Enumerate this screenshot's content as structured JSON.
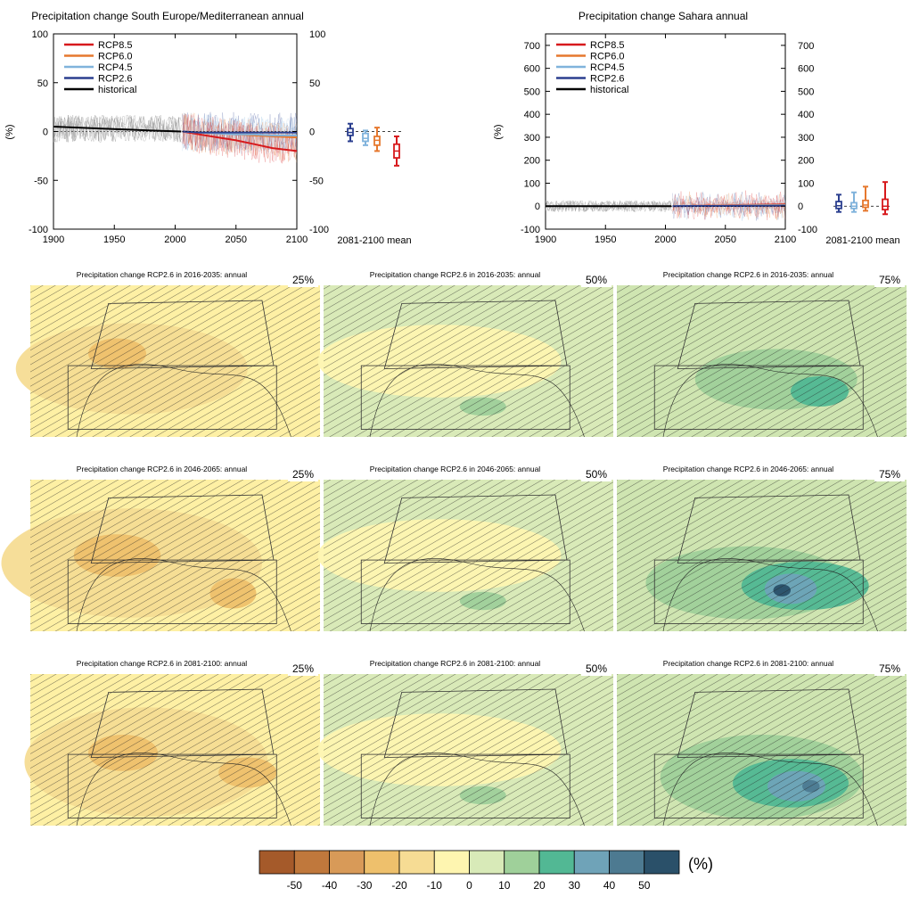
{
  "chart_data": [
    {
      "type": "line",
      "title": "Precipitation change South Europe/Mediterranean annual",
      "ylabel": "(%)",
      "x_ticks": [
        1900,
        1950,
        2000,
        2050,
        2100
      ],
      "xlim": [
        1900,
        2100
      ],
      "ylim": [
        -100,
        100
      ],
      "y_ticks": [
        -100,
        -50,
        0,
        50,
        100
      ],
      "legend_position": "top-left",
      "series": [
        {
          "name": "RCP8.5",
          "color": "#d7191c",
          "x": [
            2006,
            2020,
            2035,
            2050,
            2065,
            2080,
            2100
          ],
          "values": [
            0,
            -3,
            -6,
            -9,
            -13,
            -17,
            -20
          ]
        },
        {
          "name": "RCP6.0",
          "color": "#e6782e",
          "x": [
            2006,
            2020,
            2035,
            2050,
            2065,
            2080,
            2100
          ],
          "values": [
            0,
            -1,
            -2,
            -3,
            -4,
            -5,
            -6
          ]
        },
        {
          "name": "RCP4.5",
          "color": "#80b3dc",
          "x": [
            2006,
            2020,
            2035,
            2050,
            2065,
            2080,
            2100
          ],
          "values": [
            0,
            -1,
            -2,
            -3,
            -3,
            -4,
            -4
          ]
        },
        {
          "name": "RCP2.6",
          "color": "#2b3f8f",
          "x": [
            2006,
            2020,
            2035,
            2050,
            2065,
            2080,
            2100
          ],
          "values": [
            0,
            -1,
            -1,
            -1,
            -1,
            -1,
            -1
          ]
        },
        {
          "name": "historical",
          "color": "#000000",
          "x": [
            1900,
            1920,
            1940,
            1960,
            1980,
            2005
          ],
          "values": [
            5,
            4,
            3,
            2,
            1,
            0
          ]
        }
      ],
      "mean_label": "2081-2100 mean",
      "boxplots": [
        {
          "scenario": "RCP2.6",
          "color": "#2b3f8f",
          "min": -10,
          "q1": -4,
          "median": -1,
          "q3": 3,
          "max": 8
        },
        {
          "scenario": "RCP4.5",
          "color": "#80b3dc",
          "min": -14,
          "q1": -10,
          "median": -7,
          "q3": -2,
          "max": 1
        },
        {
          "scenario": "RCP6.0",
          "color": "#e6782e",
          "min": -20,
          "q1": -14,
          "median": -9,
          "q3": -5,
          "max": 4
        },
        {
          "scenario": "RCP8.5",
          "color": "#d7191c",
          "min": -35,
          "q1": -27,
          "median": -20,
          "q3": -13,
          "max": -5
        }
      ]
    },
    {
      "type": "line",
      "title": "Precipitation change Sahara annual",
      "ylabel": "(%)",
      "x_ticks": [
        1900,
        1950,
        2000,
        2050,
        2100
      ],
      "xlim": [
        1900,
        2100
      ],
      "ylim": [
        -100,
        750
      ],
      "y_ticks": [
        -100,
        0,
        100,
        200,
        300,
        400,
        500,
        600,
        700
      ],
      "legend_position": "top-left",
      "series": [
        {
          "name": "RCP8.5",
          "color": "#d7191c",
          "x": [
            2006,
            2035,
            2065,
            2100
          ],
          "values": [
            0,
            2,
            5,
            8
          ]
        },
        {
          "name": "RCP6.0",
          "color": "#e6782e",
          "x": [
            2006,
            2035,
            2065,
            2100
          ],
          "values": [
            0,
            2,
            4,
            6
          ]
        },
        {
          "name": "RCP4.5",
          "color": "#80b3dc",
          "x": [
            2006,
            2035,
            2065,
            2100
          ],
          "values": [
            0,
            1,
            3,
            4
          ]
        },
        {
          "name": "RCP2.6",
          "color": "#2b3f8f",
          "x": [
            2006,
            2035,
            2065,
            2100
          ],
          "values": [
            0,
            1,
            1,
            2
          ]
        },
        {
          "name": "historical",
          "color": "#000000",
          "x": [
            1900,
            1950,
            2005
          ],
          "values": [
            0,
            0,
            0
          ]
        }
      ],
      "mean_label": "2081-2100 mean",
      "boxplots": [
        {
          "scenario": "RCP2.6",
          "color": "#2b3f8f",
          "min": -25,
          "q1": -10,
          "median": 2,
          "q3": 20,
          "max": 50
        },
        {
          "scenario": "RCP4.5",
          "color": "#80b3dc",
          "min": -25,
          "q1": -10,
          "median": 0,
          "q3": 15,
          "max": 60
        },
        {
          "scenario": "RCP6.0",
          "color": "#e6782e",
          "min": -20,
          "q1": -5,
          "median": 5,
          "q3": 25,
          "max": 85
        },
        {
          "scenario": "RCP8.5",
          "color": "#d7191c",
          "min": -35,
          "q1": -15,
          "median": 0,
          "q3": 30,
          "max": 105
        }
      ]
    },
    {
      "type": "heatmap",
      "rows": [
        {
          "title": "Precipitation change RCP2.6 in 2016-2035: annual"
        },
        {
          "title": "Precipitation change RCP2.6 in 2046-2065: annual"
        },
        {
          "title": "Precipitation change RCP2.6 in 2081-2100: annual"
        }
      ],
      "columns": [
        {
          "percentile": "25%",
          "base_color": "#fef0a4"
        },
        {
          "percentile": "50%",
          "base_color": "#d9eab8"
        },
        {
          "percentile": "75%",
          "base_color": "#cfe5b1"
        }
      ],
      "colorbar": {
        "unit": "(%)",
        "tick_labels": [
          "-50",
          "-40",
          "-30",
          "-20",
          "-10",
          "0",
          "10",
          "20",
          "30",
          "40",
          "50"
        ],
        "colors": [
          "#a55a2a",
          "#c0783c",
          "#d89a58",
          "#eec06c",
          "#f6dc94",
          "#fef5b0",
          "#d8eab8",
          "#9fd09a",
          "#52b894",
          "#6fa3b8",
          "#4d7a91",
          "#2a5069"
        ]
      }
    }
  ]
}
